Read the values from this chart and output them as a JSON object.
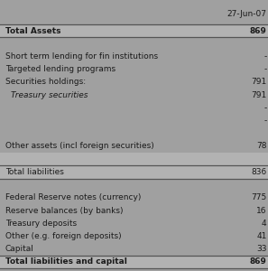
{
  "title_col": "27-Jun-07",
  "bg_color": "#a0a0a0",
  "text_color": "#1a1a1a",
  "line_color": "#555555",
  "figsize": [
    2.97,
    3.0
  ],
  "dpi": 100,
  "rows": [
    {
      "label": "Total Assets",
      "value": "869",
      "bold": true,
      "italic": false,
      "indent": false,
      "top_line": true,
      "bot_line": true,
      "dark_bg": false
    },
    {
      "label": "",
      "value": "",
      "bold": false,
      "italic": false,
      "indent": false,
      "top_line": false,
      "bot_line": false,
      "dark_bg": true
    },
    {
      "label": "Short term lending for fin institutions",
      "value": "-",
      "bold": false,
      "italic": false,
      "indent": false,
      "top_line": false,
      "bot_line": false,
      "dark_bg": true
    },
    {
      "label": "Targeted lending programs",
      "value": "-",
      "bold": false,
      "italic": false,
      "indent": false,
      "top_line": false,
      "bot_line": false,
      "dark_bg": true
    },
    {
      "label": "Securities holdings:",
      "value": "791",
      "bold": false,
      "italic": false,
      "indent": false,
      "top_line": false,
      "bot_line": false,
      "dark_bg": true
    },
    {
      "label": "Treasury securities",
      "value": "791",
      "bold": false,
      "italic": true,
      "indent": true,
      "top_line": false,
      "bot_line": false,
      "dark_bg": true
    },
    {
      "label": "",
      "value": "-",
      "bold": false,
      "italic": false,
      "indent": false,
      "top_line": false,
      "bot_line": false,
      "dark_bg": true
    },
    {
      "label": "",
      "value": "-",
      "bold": false,
      "italic": false,
      "indent": false,
      "top_line": false,
      "bot_line": false,
      "dark_bg": true
    },
    {
      "label": "",
      "value": "",
      "bold": false,
      "italic": false,
      "indent": false,
      "top_line": false,
      "bot_line": false,
      "dark_bg": true
    },
    {
      "label": "Other assets (incl foreign securities)",
      "value": "78",
      "bold": false,
      "italic": false,
      "indent": false,
      "top_line": false,
      "bot_line": false,
      "dark_bg": true
    },
    {
      "label": "",
      "value": "",
      "bold": false,
      "italic": false,
      "indent": false,
      "top_line": false,
      "bot_line": false,
      "dark_bg": false
    },
    {
      "label": "Total liabilities",
      "value": "836",
      "bold": false,
      "italic": false,
      "indent": false,
      "top_line": true,
      "bot_line": true,
      "dark_bg": false
    },
    {
      "label": "",
      "value": "",
      "bold": false,
      "italic": false,
      "indent": false,
      "top_line": false,
      "bot_line": false,
      "dark_bg": true
    },
    {
      "label": "Federal Reserve notes (currency)",
      "value": "775",
      "bold": false,
      "italic": false,
      "indent": false,
      "top_line": false,
      "bot_line": false,
      "dark_bg": true
    },
    {
      "label": "Reserve balances (by banks)",
      "value": "16",
      "bold": false,
      "italic": false,
      "indent": false,
      "top_line": false,
      "bot_line": false,
      "dark_bg": true
    },
    {
      "label": "Treasury deposits",
      "value": "4",
      "bold": false,
      "italic": false,
      "indent": false,
      "top_line": false,
      "bot_line": false,
      "dark_bg": true
    },
    {
      "label": "Other (e.g. foreign deposits)",
      "value": "41",
      "bold": false,
      "italic": false,
      "indent": false,
      "top_line": false,
      "bot_line": false,
      "dark_bg": true
    },
    {
      "label": "Capital",
      "value": "33",
      "bold": false,
      "italic": false,
      "indent": false,
      "top_line": false,
      "bot_line": false,
      "dark_bg": true
    },
    {
      "label": "Total liabilities and capital",
      "value": "869",
      "bold": true,
      "italic": false,
      "indent": false,
      "top_line": true,
      "bot_line": true,
      "dark_bg": false
    }
  ]
}
